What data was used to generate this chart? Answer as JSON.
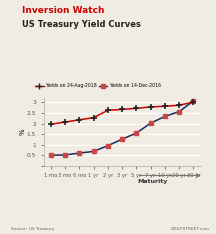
{
  "title_line1": "Inversion Watch",
  "title_line2": "US Treasury Yield Curves",
  "x_labels": [
    "1 mo",
    "3 mo",
    "6 mo",
    "1 yr",
    "2 yr",
    "3 yr",
    "5 yr",
    "7 yr",
    "10 yr",
    "20 yr",
    "30 yr"
  ],
  "x_positions": [
    0,
    1,
    2,
    3,
    4,
    5,
    6,
    7,
    8,
    9,
    10
  ],
  "yields_aug2018": [
    1.97,
    2.07,
    2.18,
    2.28,
    2.63,
    2.67,
    2.72,
    2.79,
    2.82,
    2.87,
    3.02
  ],
  "yields_dec2016": [
    0.5,
    0.51,
    0.6,
    0.68,
    0.95,
    1.26,
    1.55,
    2.02,
    2.34,
    2.57,
    3.07
  ],
  "color_aug2018": "#cc0000",
  "color_dec2016": "#1a2a5e",
  "ylabel": "%",
  "xlabel": "Maturity",
  "ylim": [
    0,
    3.2
  ],
  "yticks": [
    0,
    0.5,
    1.0,
    1.5,
    2.0,
    2.5,
    3.0
  ],
  "ytick_labels": [
    "",
    "0.5",
    "1",
    "1.5",
    "2",
    "2.5",
    "3"
  ],
  "source_left": "Source: US Treasury",
  "source_right": "WOLFSTREET.com",
  "background_color": "#f0ece4",
  "legend_label_aug": "Yields on 24-Aug-2018",
  "legend_label_dec": "Yields on 14-Dec-2016"
}
